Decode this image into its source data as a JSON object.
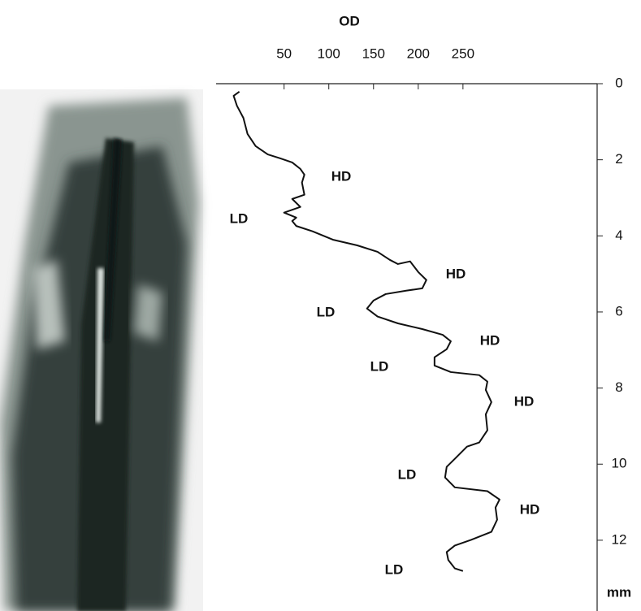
{
  "chart_data": {
    "type": "line",
    "x_label": "OD",
    "y_label": "mm",
    "xlim": [
      -26,
      400
    ],
    "xticks": [
      50,
      100,
      150,
      200,
      250
    ],
    "ylim": [
      0,
      13.86
    ],
    "yticks": [
      0,
      2,
      4,
      6,
      8,
      10,
      12
    ],
    "y_reversed": true,
    "series": [
      {
        "color": "#111111",
        "x": [
          0,
          -6.4,
          -2.7,
          4.5,
          9.1,
          18.2,
          31.8,
          45.5,
          59.1,
          68.2,
          72.7,
          70,
          72.7,
          59.1,
          68.2,
          50,
          63.6,
          59.1,
          63.6,
          81.8,
          104.5,
          131.8,
          154.5,
          168.2,
          177.3,
          190.9,
          200,
          209.1,
          204.5,
          186.4,
          163.6,
          150,
          142.7,
          154.5,
          177.3,
          204.5,
          227.3,
          236.4,
          231.8,
          218.2,
          218.2,
          236.4,
          268.2,
          277.3,
          275.5,
          281.8,
          275.5,
          277.3,
          268.2,
          254.5,
          240.9,
          231.8,
          230,
          240.9,
          277.3,
          290.9,
          286.4,
          288.2,
          281.8,
          259.1,
          240.9,
          231.8,
          233.6,
          240.9,
          250
        ],
        "values": [
          0.21,
          0.32,
          0.58,
          0.9,
          1.32,
          1.64,
          1.86,
          1.96,
          2.07,
          2.24,
          2.39,
          2.6,
          2.92,
          3.03,
          3.24,
          3.39,
          3.52,
          3.61,
          3.74,
          3.88,
          4.1,
          4.25,
          4.42,
          4.63,
          4.74,
          4.67,
          4.95,
          5.16,
          5.38,
          5.44,
          5.53,
          5.7,
          5.91,
          6.12,
          6.3,
          6.45,
          6.6,
          6.77,
          6.98,
          7.19,
          7.41,
          7.58,
          7.66,
          7.83,
          8.05,
          8.37,
          8.69,
          9.11,
          9.43,
          9.54,
          9.86,
          10.07,
          10.35,
          10.61,
          10.71,
          10.93,
          11.14,
          11.46,
          11.78,
          11.99,
          12.14,
          12.31,
          12.52,
          12.74,
          12.81
        ]
      }
    ],
    "annotations": [
      "HD",
      "LD",
      "HD",
      "LD",
      "HD",
      "LD",
      "HD",
      "LD",
      "HD",
      "LD"
    ]
  }
}
